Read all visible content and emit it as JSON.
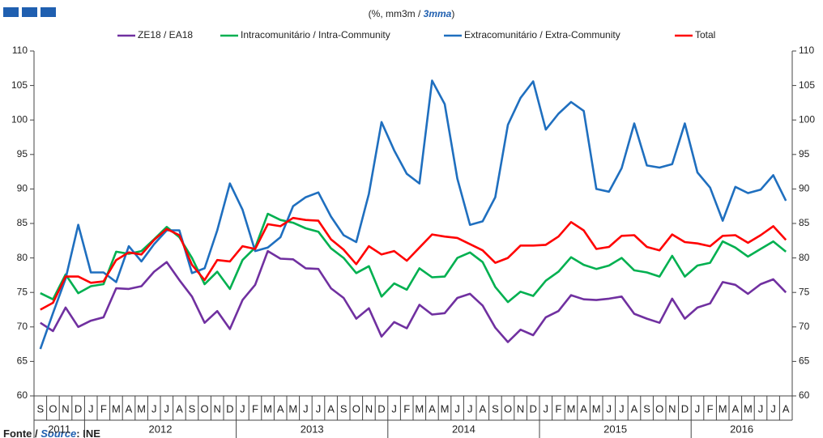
{
  "chart_data": {
    "type": "line",
    "subtitle": [
      "(%, mm3m / ",
      "3mma",
      ")"
    ],
    "source": [
      "Fonte / ",
      "Source",
      ": INE"
    ],
    "categories": [
      "S",
      "O",
      "N",
      "D",
      "J",
      "F",
      "M",
      "A",
      "M",
      "J",
      "J",
      "A",
      "S",
      "O",
      "N",
      "D",
      "J",
      "F",
      "M",
      "A",
      "M",
      "J",
      "J",
      "A",
      "S",
      "O",
      "N",
      "D",
      "J",
      "F",
      "M",
      "A",
      "M",
      "J",
      "J",
      "A",
      "S",
      "O",
      "N",
      "D",
      "J",
      "F",
      "M",
      "A",
      "M",
      "J",
      "J",
      "A",
      "S",
      "O",
      "N",
      "D",
      "J",
      "F",
      "M",
      "A",
      "M",
      "J",
      "J",
      "A"
    ],
    "x_groups": [
      {
        "label": "2011",
        "span": 4
      },
      {
        "label": "2012",
        "span": 12
      },
      {
        "label": "2013",
        "span": 12
      },
      {
        "label": "2014",
        "span": 12
      },
      {
        "label": "2015",
        "span": 12
      },
      {
        "label": "2016",
        "span": 8
      }
    ],
    "ylim": [
      60,
      110
    ],
    "yticks": [
      60,
      65,
      70,
      75,
      80,
      85,
      90,
      95,
      100,
      105,
      110
    ],
    "y2lim": [
      60,
      110
    ],
    "y2ticks": [
      60,
      65,
      70,
      75,
      80,
      85,
      90,
      95,
      100,
      105,
      110
    ],
    "legend": "top",
    "series": [
      {
        "name": "ZE18 / EA18",
        "color": "#7030a0",
        "values": [
          70.6,
          69.4,
          72.8,
          70,
          70.9,
          71.4,
          75.6,
          75.5,
          75.9,
          78,
          79.4,
          76.8,
          74.4,
          70.6,
          72.3,
          69.7,
          73.9,
          76.1,
          81,
          79.9,
          79.8,
          78.5,
          78.4,
          75.6,
          74.2,
          71.2,
          72.7,
          68.6,
          70.7,
          69.8,
          73.2,
          71.8,
          72,
          74.2,
          74.8,
          73.1,
          69.9,
          67.8,
          69.6,
          68.8,
          71.4,
          72.3,
          74.6,
          74,
          73.9,
          74.1,
          74.4,
          71.9,
          71.2,
          70.6,
          74.1,
          71.2,
          72.8,
          73.4,
          76.5,
          76.1,
          74.8,
          76.2,
          76.9,
          75
        ]
      },
      {
        "name": "Intracomunitário / Intra-Community",
        "color": "#00b050",
        "values": [
          74.9,
          74,
          77.6,
          74.9,
          75.9,
          76.2,
          80.9,
          80.6,
          81,
          82.7,
          84.5,
          83,
          80,
          76.2,
          78,
          75.5,
          79.7,
          81.5,
          86.4,
          85.5,
          85.1,
          84.3,
          83.8,
          81.4,
          80,
          77.8,
          78.8,
          74.4,
          76.3,
          75.4,
          78.5,
          77.2,
          77.3,
          80,
          80.8,
          79.4,
          75.8,
          73.6,
          75.1,
          74.5,
          76.7,
          78,
          80.1,
          79,
          78.4,
          78.9,
          80,
          78.2,
          77.9,
          77.3,
          80.3,
          77.3,
          78.9,
          79.3,
          82.4,
          81.5,
          80.2,
          81.3,
          82.4,
          80.9
        ]
      },
      {
        "name": "Extracomunitário / Extra-Community",
        "color": "#1f6fbf",
        "values": [
          66.8,
          72,
          77,
          84.8,
          77.9,
          77.9,
          76.5,
          81.7,
          79.5,
          82,
          84,
          84,
          77.8,
          78.5,
          84,
          90.8,
          87,
          81,
          81.5,
          83,
          87.5,
          88.8,
          89.5,
          86,
          83.3,
          82.3,
          89.3,
          99.7,
          95.6,
          92.2,
          90.8,
          105.7,
          102.3,
          91.5,
          84.8,
          85.3,
          88.8,
          99.3,
          103.2,
          105.6,
          98.6,
          100.9,
          102.6,
          101.3,
          90,
          89.6,
          93,
          99.5,
          93.4,
          93.1,
          93.6,
          99.5,
          92.4,
          90.2,
          85.4,
          90.3,
          89.4,
          89.9,
          92,
          88.3
        ]
      },
      {
        "name": "Total",
        "color": "#ff0000",
        "values": [
          72.5,
          73.5,
          77.3,
          77.3,
          76.4,
          76.6,
          79.7,
          80.8,
          80.5,
          82.6,
          84.2,
          83.3,
          79,
          76.8,
          79.7,
          79.5,
          81.7,
          81.3,
          84.9,
          84.6,
          85.8,
          85.5,
          85.4,
          82.7,
          81.2,
          79.1,
          81.7,
          80.5,
          81,
          79.6,
          81.5,
          83.4,
          83.1,
          82.9,
          82,
          81.1,
          79.3,
          80,
          81.8,
          81.8,
          81.9,
          83.1,
          85.2,
          84,
          81.3,
          81.6,
          83.2,
          83.3,
          81.6,
          81.1,
          83.4,
          82.3,
          82.1,
          81.7,
          83.2,
          83.3,
          82.2,
          83.3,
          84.6,
          82.6
        ]
      }
    ]
  }
}
